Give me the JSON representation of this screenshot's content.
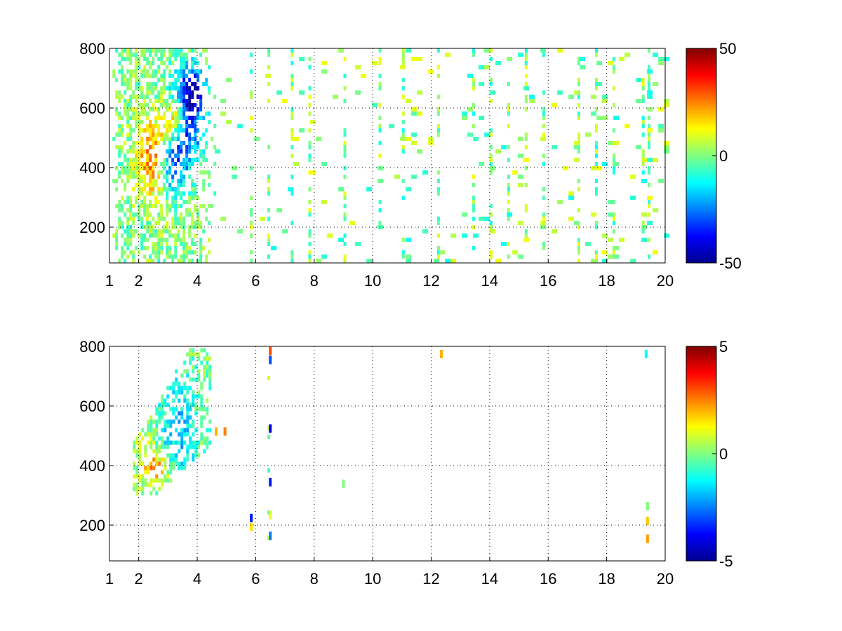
{
  "chart_data": [
    {
      "type": "heatmap",
      "title": "",
      "xlabel": "",
      "ylabel": "",
      "xlim": [
        1,
        20
      ],
      "ylim": [
        80,
        800
      ],
      "x_ticks": [
        1,
        2,
        4,
        6,
        8,
        10,
        12,
        14,
        16,
        18,
        20
      ],
      "x_grid": [
        2,
        4,
        6,
        8,
        10,
        12,
        14,
        16,
        18,
        20
      ],
      "y_ticks": [
        200,
        400,
        600,
        800
      ],
      "grid": true,
      "grid_style": "dotted",
      "colormap": "jet",
      "clim": [
        -50,
        50
      ],
      "colorbar_ticks": [
        50,
        0,
        -50
      ],
      "colorbar_ticks_text": [
        "50",
        "0",
        "-50"
      ],
      "blobs": [
        {
          "x": 2.6,
          "y": 420,
          "sx": 0.45,
          "sy": 90,
          "v": 38
        },
        {
          "x": 3.2,
          "y": 560,
          "sx": 0.25,
          "sy": 45,
          "v": 30
        },
        {
          "x": 3.0,
          "y": 400,
          "sx": 0.35,
          "sy": 70,
          "v": -42
        },
        {
          "x": 3.6,
          "y": 560,
          "sx": 0.4,
          "sy": 110,
          "v": -38
        },
        {
          "x": 3.9,
          "y": 660,
          "sx": 0.3,
          "sy": 50,
          "v": -25
        }
      ],
      "dense_region": {
        "x": [
          1.1,
          4.6
        ],
        "y": [
          80,
          800
        ]
      },
      "columns": [
        5.8,
        6.4,
        7.2,
        7.8,
        9.0,
        10.2,
        11.0,
        12.2,
        13.4,
        14.0,
        14.6,
        15.2,
        15.8,
        17.0,
        17.6,
        18.2,
        19.2,
        19.4
      ],
      "sparse_density": 0.22,
      "sparse_value_range": [
        -12,
        12
      ]
    },
    {
      "type": "heatmap",
      "title": "",
      "xlabel": "",
      "ylabel": "",
      "xlim": [
        1,
        20
      ],
      "ylim": [
        80,
        800
      ],
      "x_ticks": [
        1,
        2,
        4,
        6,
        8,
        10,
        12,
        14,
        16,
        18,
        20
      ],
      "x_grid": [
        2,
        4,
        6,
        8,
        10,
        12,
        14,
        16,
        18,
        20
      ],
      "y_ticks": [
        200,
        400,
        600,
        800
      ],
      "grid": true,
      "grid_style": "dotted",
      "colormap": "jet",
      "clim": [
        -5,
        5
      ],
      "colorbar_ticks": [
        5,
        0,
        -5
      ],
      "colorbar_ticks_text": [
        "5",
        "0",
        "-5"
      ],
      "blobs": [
        {
          "x": 3.3,
          "y": 520,
          "sx": 0.5,
          "sy": 140,
          "v": -1.8
        },
        {
          "x": 2.6,
          "y": 380,
          "sx": 0.3,
          "sy": 40,
          "v": 2.5
        },
        {
          "x": 2.2,
          "y": 450,
          "sx": 0.25,
          "sy": 60,
          "v": 1.0
        }
      ],
      "dense_region": {
        "x": [
          1.8,
          4.4
        ],
        "y": [
          300,
          790
        ]
      },
      "region_tilt": 0.35,
      "columns": [
        6.4
      ],
      "points": [
        {
          "x": 5.8,
          "y": 210,
          "v": -3.5
        },
        {
          "x": 5.8,
          "y": 180,
          "v": 1.5
        },
        {
          "x": 6.45,
          "y": 770,
          "v": 3.0
        },
        {
          "x": 6.45,
          "y": 740,
          "v": -3.0
        },
        {
          "x": 6.45,
          "y": 510,
          "v": -3.8
        },
        {
          "x": 6.45,
          "y": 330,
          "v": -3.5
        },
        {
          "x": 6.45,
          "y": 150,
          "v": -2.5
        },
        {
          "x": 6.45,
          "y": 220,
          "v": 1.0
        },
        {
          "x": 8.95,
          "y": 325,
          "v": 0.0
        },
        {
          "x": 12.3,
          "y": 760,
          "v": 2.0
        },
        {
          "x": 19.3,
          "y": 760,
          "v": -1.2
        },
        {
          "x": 19.35,
          "y": 250,
          "v": 0.0
        },
        {
          "x": 19.35,
          "y": 200,
          "v": 1.8
        },
        {
          "x": 19.35,
          "y": 140,
          "v": 2.2
        },
        {
          "x": 4.6,
          "y": 500,
          "v": 2.0
        },
        {
          "x": 4.9,
          "y": 500,
          "v": 2.5
        }
      ],
      "sparse_density": 0.0,
      "sparse_value_range": [
        -1,
        1
      ]
    }
  ]
}
